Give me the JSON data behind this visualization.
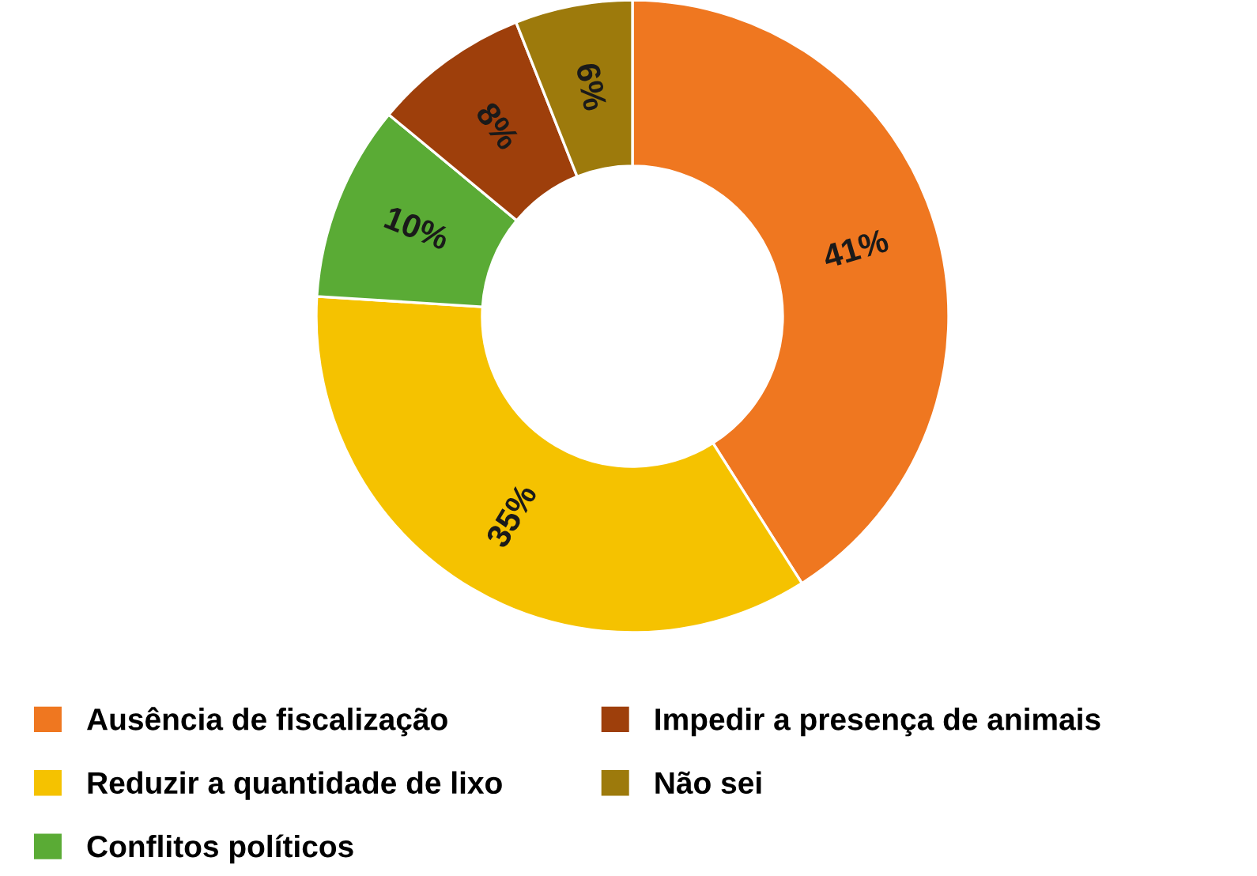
{
  "chart_data": {
    "type": "donut",
    "categories": [
      "Ausência de fiscalização",
      "Reduzir a quantidade de lixo",
      "Conflitos políticos",
      "Impedir a presença de animais",
      "Não sei"
    ],
    "values": [
      41,
      35,
      10,
      8,
      6
    ],
    "colors": [
      "#ef7720",
      "#f5c200",
      "#5aab35",
      "#9e3f0b",
      "#9d7a0c"
    ],
    "value_labels": [
      "41%",
      "35%",
      "10%",
      "8%",
      "6%"
    ],
    "legend": "bottom"
  }
}
